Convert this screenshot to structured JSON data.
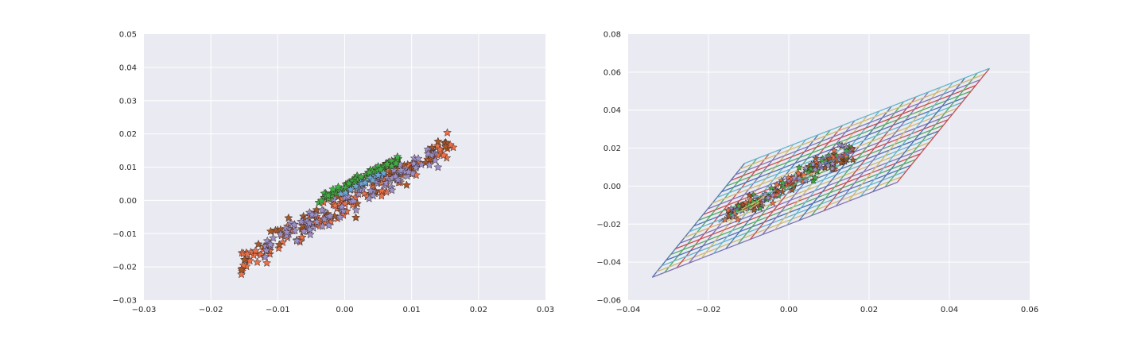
{
  "colors": {
    "axes_bg": "#eaeaf2",
    "grid": "#ffffff",
    "star_orange": "#e8704a",
    "star_brown": "#a65628",
    "star_purple": "#9b8fc9",
    "star_green": "#3cae45",
    "star_blue": "#6aa6d6",
    "mesh_palette": [
      "#4c72b0",
      "#55a868",
      "#c44e52",
      "#8172b2",
      "#ccb974",
      "#64b5cd"
    ]
  },
  "chart_data": [
    {
      "type": "scatter",
      "marker": "star",
      "grid": true,
      "xlim": [
        -0.03,
        0.03
      ],
      "ylim": [
        -0.03,
        0.05
      ],
      "xticks": [
        "−0.03",
        "−0.02",
        "−0.01",
        "0.00",
        "0.01",
        "0.02",
        "0.03"
      ],
      "yticks": [
        "−0.03",
        "−0.02",
        "−0.01",
        "0.00",
        "0.01",
        "0.02",
        "0.03",
        "0.04",
        "0.05"
      ],
      "series": [
        {
          "color": "#e8704a",
          "band": {
            "x_range": [
              -0.0155,
              0.0163
            ],
            "slope": 1.15,
            "intercept": -0.0015,
            "spread": 0.0065
          },
          "count": 150
        },
        {
          "color": "#a65628",
          "band": {
            "x_range": [
              -0.0155,
              0.0163
            ],
            "slope": 1.1,
            "intercept": 0.0002,
            "spread": 0.008
          },
          "count": 45
        },
        {
          "color": "#9b8fc9",
          "band": {
            "x_range": [
              -0.012,
              0.014
            ],
            "slope": 1.05,
            "intercept": -0.001,
            "spread": 0.007
          },
          "count": 110
        },
        {
          "color": "#3cae45",
          "band": {
            "x_range": [
              -0.004,
              0.008
            ],
            "slope": 1.0,
            "intercept": 0.004,
            "spread": 0.0022
          },
          "count": 95
        },
        {
          "color": "#6aa6d6",
          "band": {
            "x_range": [
              -0.001,
              0.006
            ],
            "slope": 1.0,
            "intercept": 0.0025,
            "spread": 0.0012
          },
          "count": 22
        }
      ]
    },
    {
      "type": "line",
      "grid": true,
      "xlim": [
        -0.04,
        0.06
      ],
      "ylim": [
        -0.06,
        0.08
      ],
      "xticks": [
        "−0.04",
        "−0.02",
        "0.00",
        "0.02",
        "0.04",
        "0.06"
      ],
      "yticks": [
        "−0.06",
        "−0.04",
        "−0.02",
        "0.00",
        "0.02",
        "0.04",
        "0.06",
        "0.08"
      ],
      "mesh": {
        "corners": {
          "bottom_left": [
            -0.034,
            -0.048
          ],
          "bottom_right": [
            0.027,
            0.002
          ],
          "top_right": [
            0.05,
            0.062
          ],
          "top_left": [
            -0.011,
            0.012
          ]
        },
        "divisions": 20
      },
      "cluster": {
        "x_range": [
          -0.016,
          0.016
        ],
        "slope": 1.1,
        "intercept": 0.0015,
        "spread": 0.008,
        "count": 180,
        "colors": [
          "#e8704a",
          "#a65628",
          "#9b8fc9",
          "#3cae45"
        ]
      }
    }
  ]
}
